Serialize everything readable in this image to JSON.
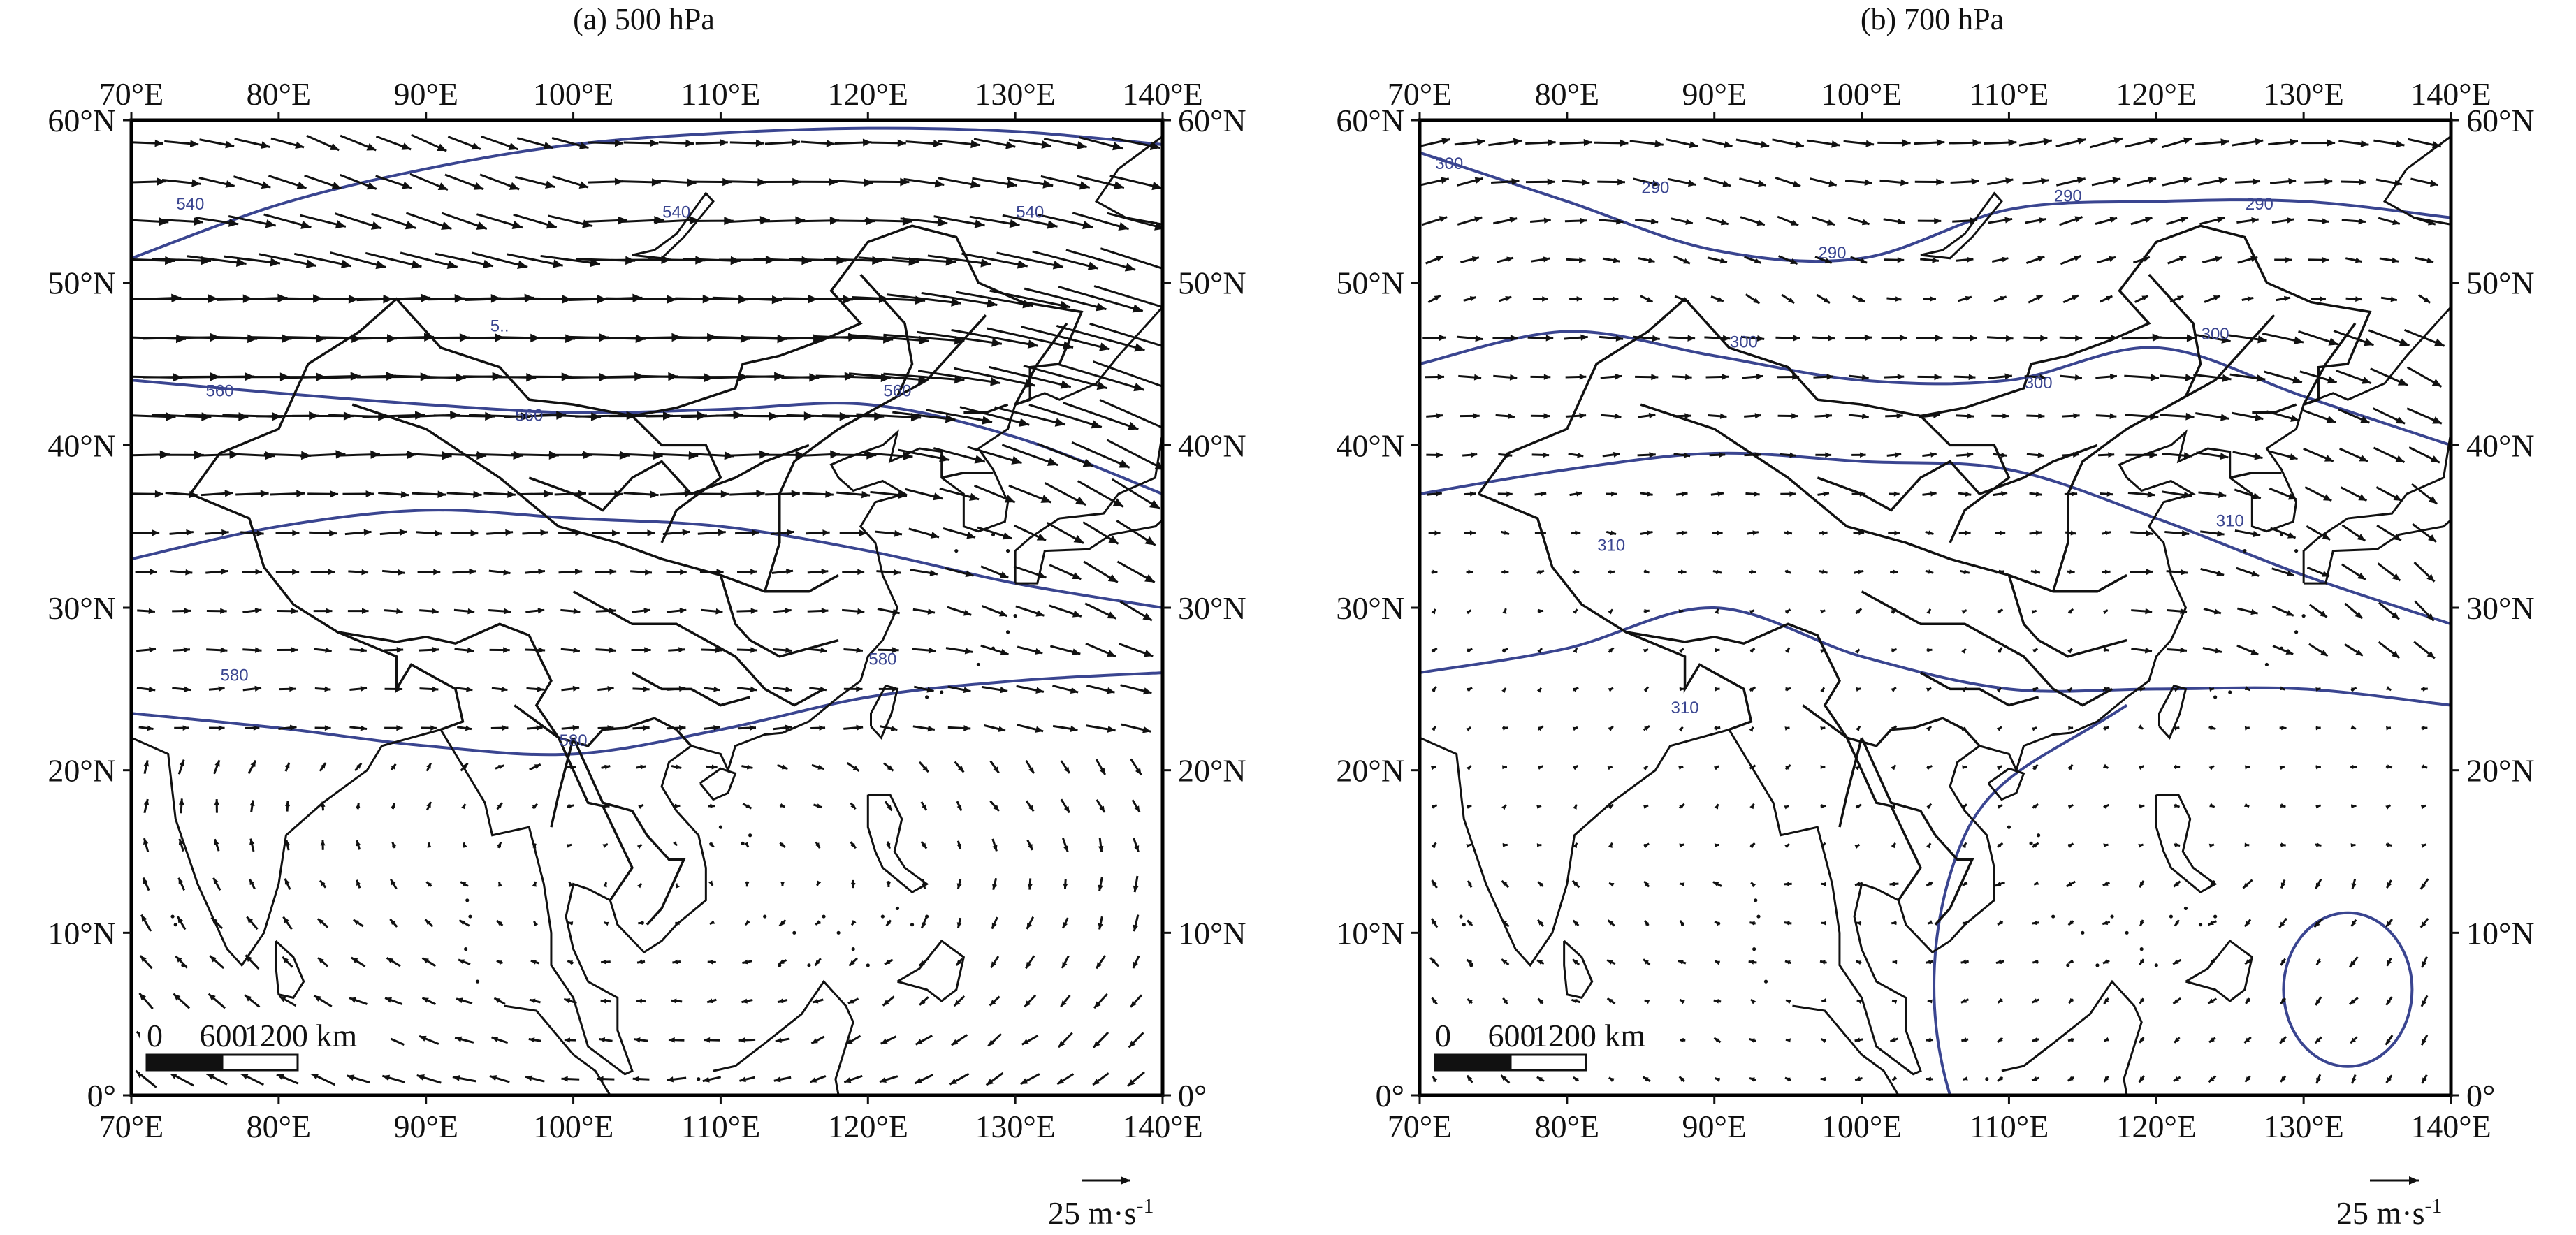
{
  "colors": {
    "contour": "#3a4590",
    "ink": "#111111",
    "frame": "#000000"
  },
  "common": {
    "lon_ticks": [
      "70°E",
      "80°E",
      "90°E",
      "100°E",
      "110°E",
      "120°E",
      "130°E",
      "140°E"
    ],
    "lat_ticks": [
      "0°",
      "10°N",
      "20°N",
      "30°N",
      "40°N",
      "50°N",
      "60°N"
    ],
    "lon_range": [
      70,
      140
    ],
    "lat_range": [
      0,
      60
    ],
    "scale_bar": {
      "labels": [
        "0",
        "600",
        "1200 km"
      ]
    },
    "reference_vector": {
      "label": "25 m·s",
      "superscript": "-1"
    }
  },
  "panels": [
    {
      "title": "(a) 500 hPa",
      "level": 500,
      "contours": [
        {
          "label": "540",
          "lats": [
            51.5,
            54.8,
            57.0,
            58.5,
            59.2,
            59.5,
            59.3,
            58.5
          ]
        },
        {
          "label": "560",
          "lats": [
            44.0,
            43.2,
            42.5,
            42.0,
            42.2,
            42.5,
            40.5,
            37.0
          ]
        },
        {
          "label": "580",
          "lats": [
            23.5,
            22.6,
            21.5,
            21.0,
            22.5,
            24.5,
            25.5,
            26.0
          ]
        },
        {
          "label": "5..",
          "lats": [
            33.0,
            35.0,
            36.0,
            35.5,
            35.0,
            33.5,
            31.5,
            30.0
          ]
        }
      ],
      "contour_labels": [
        {
          "text": "540",
          "lon": 74,
          "lat": 54.5
        },
        {
          "text": "540",
          "lon": 107,
          "lat": 54.0
        },
        {
          "text": "540",
          "lon": 131,
          "lat": 54.0
        },
        {
          "text": "560",
          "lon": 76,
          "lat": 43.0
        },
        {
          "text": "560",
          "lon": 97,
          "lat": 41.5
        },
        {
          "text": "560",
          "lon": 122,
          "lat": 43.0
        },
        {
          "text": "580",
          "lon": 77,
          "lat": 25.5
        },
        {
          "text": "580",
          "lon": 100,
          "lat": 21.5
        },
        {
          "text": "580",
          "lon": 121,
          "lat": 26.5
        },
        {
          "text": "5..",
          "lon": 95,
          "lat": 47.0
        }
      ],
      "flow_note": "strong westerlies north of 30°N, trough near 130°E"
    },
    {
      "title": "(b) 700 hPa",
      "level": 700,
      "contours": [
        {
          "label": "290",
          "lats": [
            58.0,
            55.0,
            52.0,
            51.5,
            54.5,
            55.0,
            55.0,
            54.0
          ]
        },
        {
          "label": "300",
          "lats": [
            45.0,
            47.0,
            45.5,
            44.0,
            44.0,
            46.0,
            43.0,
            40.0
          ]
        },
        {
          "label": "310",
          "lats": [
            37.0,
            38.5,
            39.5,
            39.0,
            38.5,
            35.5,
            32.0,
            29.0
          ]
        },
        {
          "label": "310",
          "lats": [
            26.0,
            27.5,
            30.0,
            27.0,
            25.0,
            25.0,
            25.0,
            24.0
          ]
        }
      ],
      "contour_labels": [
        {
          "text": "300",
          "lon": 72,
          "lat": 57.0
        },
        {
          "text": "290",
          "lon": 86,
          "lat": 55.5
        },
        {
          "text": "290",
          "lon": 98,
          "lat": 51.5
        },
        {
          "text": "290",
          "lon": 114,
          "lat": 55.0
        },
        {
          "text": "290",
          "lon": 127,
          "lat": 54.5
        },
        {
          "text": "300",
          "lon": 92,
          "lat": 46.0
        },
        {
          "text": "300",
          "lon": 112,
          "lat": 43.5
        },
        {
          "text": "300",
          "lon": 124,
          "lat": 46.5
        },
        {
          "text": "310",
          "lon": 83,
          "lat": 33.5
        },
        {
          "text": "310",
          "lon": 88,
          "lat": 23.5
        },
        {
          "text": "310",
          "lon": 125,
          "lat": 35.0
        }
      ],
      "flow_note": "northwesterlies over NE Asia, weak flow south of 30°N"
    }
  ]
}
